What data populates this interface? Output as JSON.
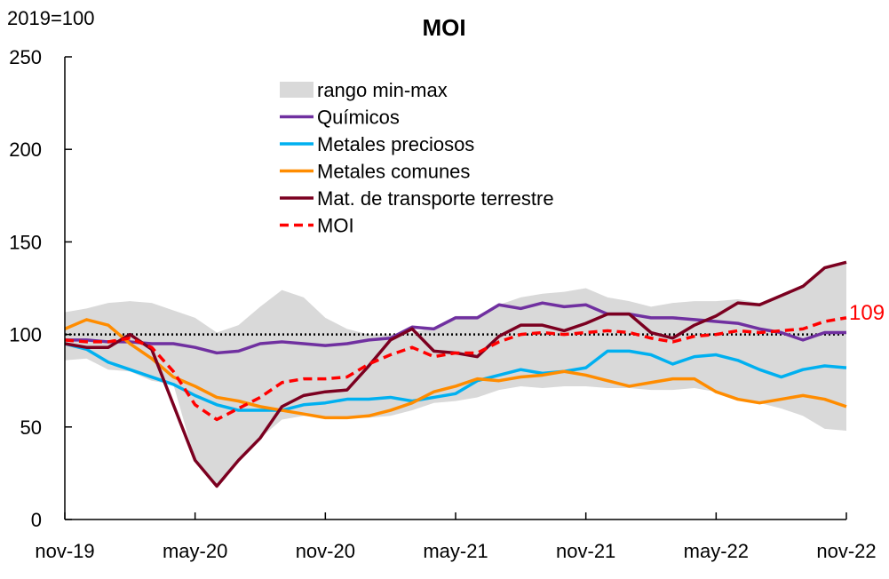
{
  "chart_data": {
    "type": "line",
    "title": "MOI",
    "ylabel": "2019=100",
    "xlabel": "",
    "ylim": [
      0,
      250
    ],
    "yticks": [
      0,
      50,
      100,
      150,
      200,
      250
    ],
    "x_tick_labels": [
      "nov-19",
      "may-20",
      "nov-20",
      "may-21",
      "nov-21",
      "may-22",
      "nov-22"
    ],
    "n_months": 37,
    "reference_line": 100,
    "end_label": "109",
    "legend_position": "top-center",
    "band": {
      "name": "rango min-max",
      "color": "#d9d9d9",
      "max": [
        112,
        114,
        117,
        118,
        117,
        113,
        109,
        101,
        105,
        115,
        124,
        120,
        109,
        103,
        100,
        100,
        101,
        104,
        110,
        110,
        116,
        120,
        122,
        123,
        125,
        120,
        118,
        115,
        117,
        118,
        118,
        119,
        117,
        120,
        126,
        136,
        139
      ],
      "min": [
        86,
        87,
        81,
        80,
        75,
        73,
        32,
        18,
        32,
        44,
        54,
        56,
        55,
        55,
        55,
        56,
        59,
        63,
        64,
        66,
        70,
        72,
        71,
        72,
        72,
        71,
        71,
        70,
        70,
        71,
        69,
        65,
        63,
        60,
        56,
        49,
        48
      ]
    },
    "series": [
      {
        "name": "Químicos",
        "color": "#7030a0",
        "dash": false,
        "values": [
          97,
          97,
          96,
          96,
          95,
          95,
          93,
          90,
          91,
          95,
          96,
          95,
          94,
          95,
          97,
          98,
          104,
          103,
          109,
          109,
          116,
          114,
          117,
          115,
          116,
          111,
          111,
          109,
          109,
          108,
          107,
          106,
          103,
          101,
          97,
          101,
          101
        ]
      },
      {
        "name": "Metales preciosos",
        "color": "#00b0f0",
        "dash": false,
        "values": [
          95,
          92,
          85,
          81,
          77,
          73,
          67,
          62,
          59,
          59,
          59,
          62,
          63,
          65,
          65,
          66,
          64,
          66,
          68,
          75,
          78,
          81,
          79,
          80,
          82,
          91,
          91,
          89,
          84,
          88,
          89,
          86,
          81,
          77,
          81,
          83,
          82
        ]
      },
      {
        "name": "Metales comunes",
        "color": "#ff8c00",
        "dash": false,
        "values": [
          103,
          108,
          105,
          95,
          87,
          77,
          72,
          66,
          64,
          61,
          59,
          57,
          55,
          55,
          56,
          59,
          63,
          69,
          72,
          76,
          75,
          77,
          78,
          80,
          78,
          75,
          72,
          74,
          76,
          76,
          69,
          65,
          63,
          65,
          67,
          65,
          61
        ]
      },
      {
        "name": "Mat. de transporte terrestre",
        "color": "#7b0020",
        "dash": false,
        "values": [
          95,
          93,
          93,
          100,
          92,
          62,
          32,
          18,
          32,
          44,
          61,
          67,
          69,
          70,
          83,
          97,
          103,
          91,
          90,
          88,
          99,
          105,
          105,
          102,
          106,
          111,
          111,
          101,
          98,
          105,
          110,
          117,
          116,
          121,
          126,
          136,
          139
        ]
      },
      {
        "name": "MOI",
        "color": "#ff0000",
        "dash": true,
        "values": [
          97,
          96,
          96,
          98,
          93,
          80,
          62,
          54,
          60,
          66,
          74,
          76,
          76,
          77,
          84,
          89,
          93,
          88,
          90,
          90,
          96,
          100,
          101,
          100,
          101,
          102,
          101,
          98,
          96,
          99,
          100,
          102,
          101,
          102,
          103,
          107,
          109
        ]
      }
    ]
  }
}
